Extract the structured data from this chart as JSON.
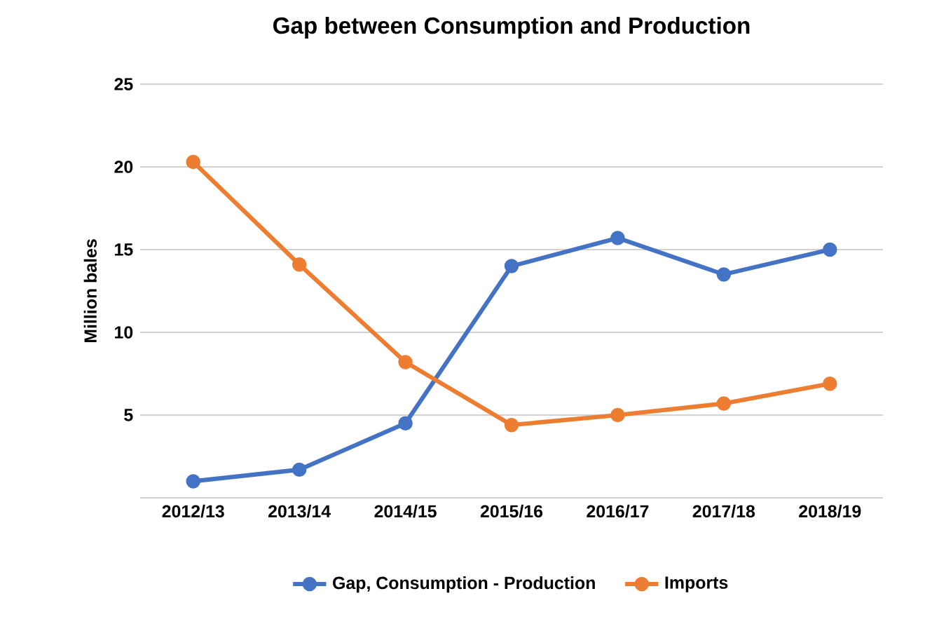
{
  "chart_data": {
    "type": "line",
    "title": "Gap between Consumption and Production",
    "ylabel": "Million bales",
    "categories": [
      "2012/13",
      "2013/14",
      "2014/15",
      "2015/16",
      "2016/17",
      "2017/18",
      "2018/19"
    ],
    "series": [
      {
        "name": "Gap, Consumption - Production",
        "color": "#4472c4",
        "values": [
          1.0,
          1.7,
          4.5,
          14.0,
          15.7,
          13.5,
          15.0
        ]
      },
      {
        "name": "Imports",
        "color": "#ed7d31",
        "values": [
          20.3,
          14.1,
          8.2,
          4.4,
          5.0,
          5.7,
          6.9
        ]
      }
    ],
    "ylim": [
      0,
      25
    ],
    "yticks": [
      {
        "value": 0,
        "label": null
      },
      5,
      10,
      15,
      20,
      25
    ],
    "grid": "y",
    "legend": "bottom",
    "marker": "circle",
    "line_style": "solid"
  }
}
